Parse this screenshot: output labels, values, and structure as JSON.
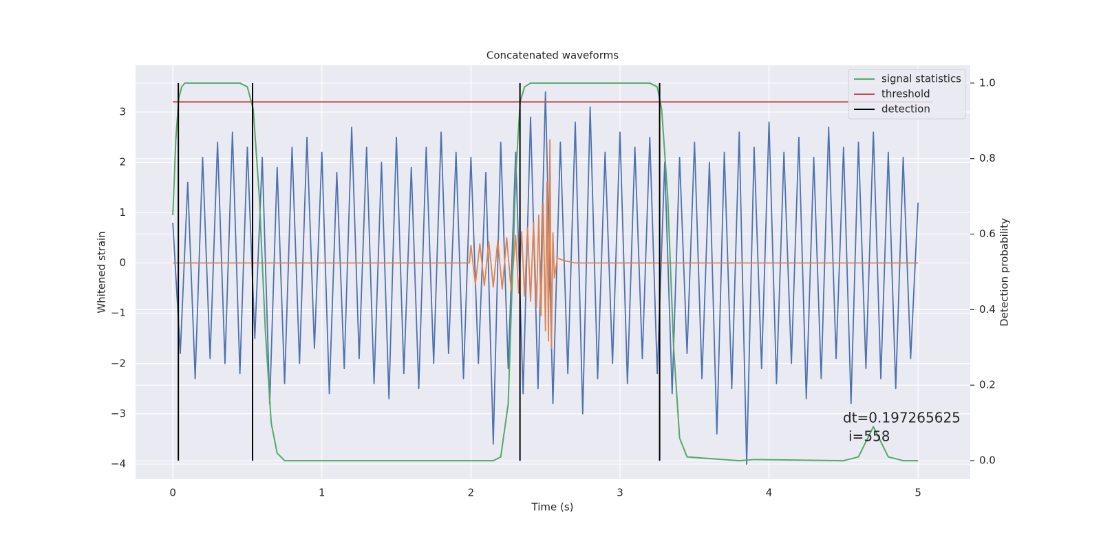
{
  "chart_data": {
    "type": "line",
    "title": "Concatenated waveforms",
    "x_label": "Time (s)",
    "y_label": "Whitened strain",
    "y2_label": "Detection probability",
    "annotation": [
      "dt=0.197265625",
      "i=558"
    ],
    "xlim": [
      -0.25,
      5.35
    ],
    "ylim": [
      -4.3,
      3.93
    ],
    "y2lim": [
      -0.049,
      1.047
    ],
    "xticks": [
      0,
      1,
      2,
      3,
      4,
      5
    ],
    "yticks": [
      {
        "value": -4,
        "label": "−4"
      },
      {
        "value": -3,
        "label": "−3"
      },
      {
        "value": -2,
        "label": "−2"
      },
      {
        "value": -1,
        "label": "−1"
      },
      0,
      1,
      2,
      3
    ],
    "y2ticks": [
      {
        "value": 0,
        "label": "0.0"
      },
      {
        "value": 0.2,
        "label": "0.2"
      },
      {
        "value": 0.4,
        "label": "0.4"
      },
      {
        "value": 0.6,
        "label": "0.6"
      },
      {
        "value": 0.8,
        "label": "0.8"
      },
      {
        "value": 1,
        "label": "1.0"
      }
    ],
    "grid": true,
    "legend": "upper right",
    "series": [
      {
        "color": "#4c72b0",
        "x": [
          0,
          0.05,
          0.1,
          0.15,
          0.2,
          0.25,
          0.3,
          0.35,
          0.4,
          0.45,
          0.5,
          0.55,
          0.6,
          0.65,
          0.7,
          0.75,
          0.8,
          0.85,
          0.9,
          0.95,
          1,
          1.05,
          1.1,
          1.15,
          1.2,
          1.25,
          1.3,
          1.35,
          1.4,
          1.45,
          1.5,
          1.55,
          1.6,
          1.65,
          1.7,
          1.75,
          1.8,
          1.85,
          1.9,
          1.95,
          2,
          2.05,
          2.1,
          2.15,
          2.2,
          2.25,
          2.3,
          2.35,
          2.4,
          2.45,
          2.5,
          2.55,
          2.6,
          2.65,
          2.7,
          2.75,
          2.8,
          2.85,
          2.9,
          2.95,
          3,
          3.05,
          3.1,
          3.15,
          3.2,
          3.25,
          3.3,
          3.35,
          3.4,
          3.45,
          3.5,
          3.55,
          3.6,
          3.65,
          3.7,
          3.75,
          3.8,
          3.85,
          3.9,
          3.95,
          4,
          4.05,
          4.1,
          4.15,
          4.2,
          4.25,
          4.3,
          4.35,
          4.4,
          4.45,
          4.5,
          4.55,
          4.6,
          4.65,
          4.7,
          4.75,
          4.8,
          4.85,
          4.9,
          4.95,
          5
        ],
        "values": [
          0.8,
          -1.8,
          1.6,
          -2.3,
          2.1,
          -1.9,
          2.4,
          -2.0,
          2.6,
          -2.2,
          2.3,
          -1.5,
          2.1,
          -2.8,
          1.9,
          -2.4,
          2.3,
          -2.0,
          2.5,
          -1.7,
          2.2,
          -2.6,
          1.8,
          -2.1,
          2.7,
          -1.9,
          2.3,
          -2.4,
          2.0,
          -2.7,
          2.5,
          -2.2,
          1.9,
          -2.5,
          2.3,
          -2.0,
          2.6,
          -1.8,
          2.2,
          -2.3,
          2.1,
          -2.0,
          1.8,
          -3.6,
          2.4,
          -2.1,
          2.2,
          -2.6,
          2.9,
          -2.5,
          3.4,
          -2.8,
          2.4,
          -2.2,
          2.8,
          -3.0,
          3.1,
          -2.3,
          2.2,
          -2.0,
          2.6,
          -2.4,
          2.3,
          -1.9,
          2.5,
          -2.2,
          2.0,
          -2.6,
          2.1,
          -1.8,
          2.4,
          -2.3,
          2.0,
          -3.4,
          2.2,
          -2.5,
          2.6,
          -4.0,
          2.3,
          -2.1,
          2.8,
          -2.4,
          2.2,
          -2.0,
          2.5,
          -2.7,
          2.1,
          -2.3,
          2.7,
          -1.9,
          2.3,
          -2.8,
          2.4,
          -2.1,
          2.6,
          -2.3,
          2.2,
          -2.5,
          2.1,
          -1.9,
          1.2
        ]
      },
      {
        "color": "#dd8452",
        "x": [
          0,
          1.99,
          2.0,
          2.03,
          2.06,
          2.09,
          2.12,
          2.15,
          2.18,
          2.21,
          2.24,
          2.27,
          2.3,
          2.32,
          2.34,
          2.36,
          2.38,
          2.4,
          2.42,
          2.44,
          2.455,
          2.47,
          2.485,
          2.5,
          2.51,
          2.52,
          2.53,
          2.54,
          2.55,
          2.56,
          2.58,
          2.62,
          2.7,
          5.0
        ],
        "values": [
          0,
          0,
          0.35,
          -0.42,
          0.38,
          -0.45,
          0.42,
          -0.48,
          0.45,
          -0.52,
          0.5,
          -0.56,
          0.55,
          -0.6,
          0.62,
          -0.66,
          0.7,
          -0.76,
          0.8,
          -0.88,
          0.95,
          -1.05,
          1.2,
          -1.35,
          1.6,
          -1.55,
          2.45,
          -1.7,
          0.6,
          -0.3,
          0.1,
          0.05,
          0,
          0
        ]
      },
      {
        "name": "signal statistics",
        "color": "#55a868",
        "axis": "y2",
        "x": [
          0,
          0.02,
          0.04,
          0.06,
          0.08,
          0.1,
          0.15,
          0.45,
          0.5,
          0.54,
          0.58,
          0.62,
          0.66,
          0.7,
          0.75,
          2.15,
          2.2,
          2.25,
          2.3,
          2.33,
          2.36,
          2.4,
          3.2,
          3.25,
          3.28,
          3.32,
          3.36,
          3.4,
          3.45,
          3.8,
          3.9,
          4.5,
          4.6,
          4.65,
          4.7,
          4.75,
          4.8,
          4.9,
          5.0
        ],
        "values": [
          0.65,
          0.85,
          0.96,
          0.99,
          1,
          1,
          1,
          1,
          0.99,
          0.93,
          0.7,
          0.35,
          0.1,
          0.02,
          0,
          0,
          0.01,
          0.15,
          0.75,
          0.95,
          0.99,
          1,
          1,
          0.99,
          0.93,
          0.7,
          0.3,
          0.06,
          0.01,
          0,
          0.003,
          0,
          0.01,
          0.05,
          0.09,
          0.05,
          0.01,
          0,
          0
        ]
      },
      {
        "name": "threshold",
        "color": "#c44e52",
        "axis": "y2",
        "x": [
          0,
          5.1
        ],
        "values": [
          0.95,
          0.95
        ]
      },
      {
        "name": "detection",
        "color": "#000000",
        "axis": "y2",
        "x": [
          0.037,
          0.535,
          2.329,
          3.266
        ],
        "ymin": 0,
        "ymax": 1
      }
    ]
  }
}
